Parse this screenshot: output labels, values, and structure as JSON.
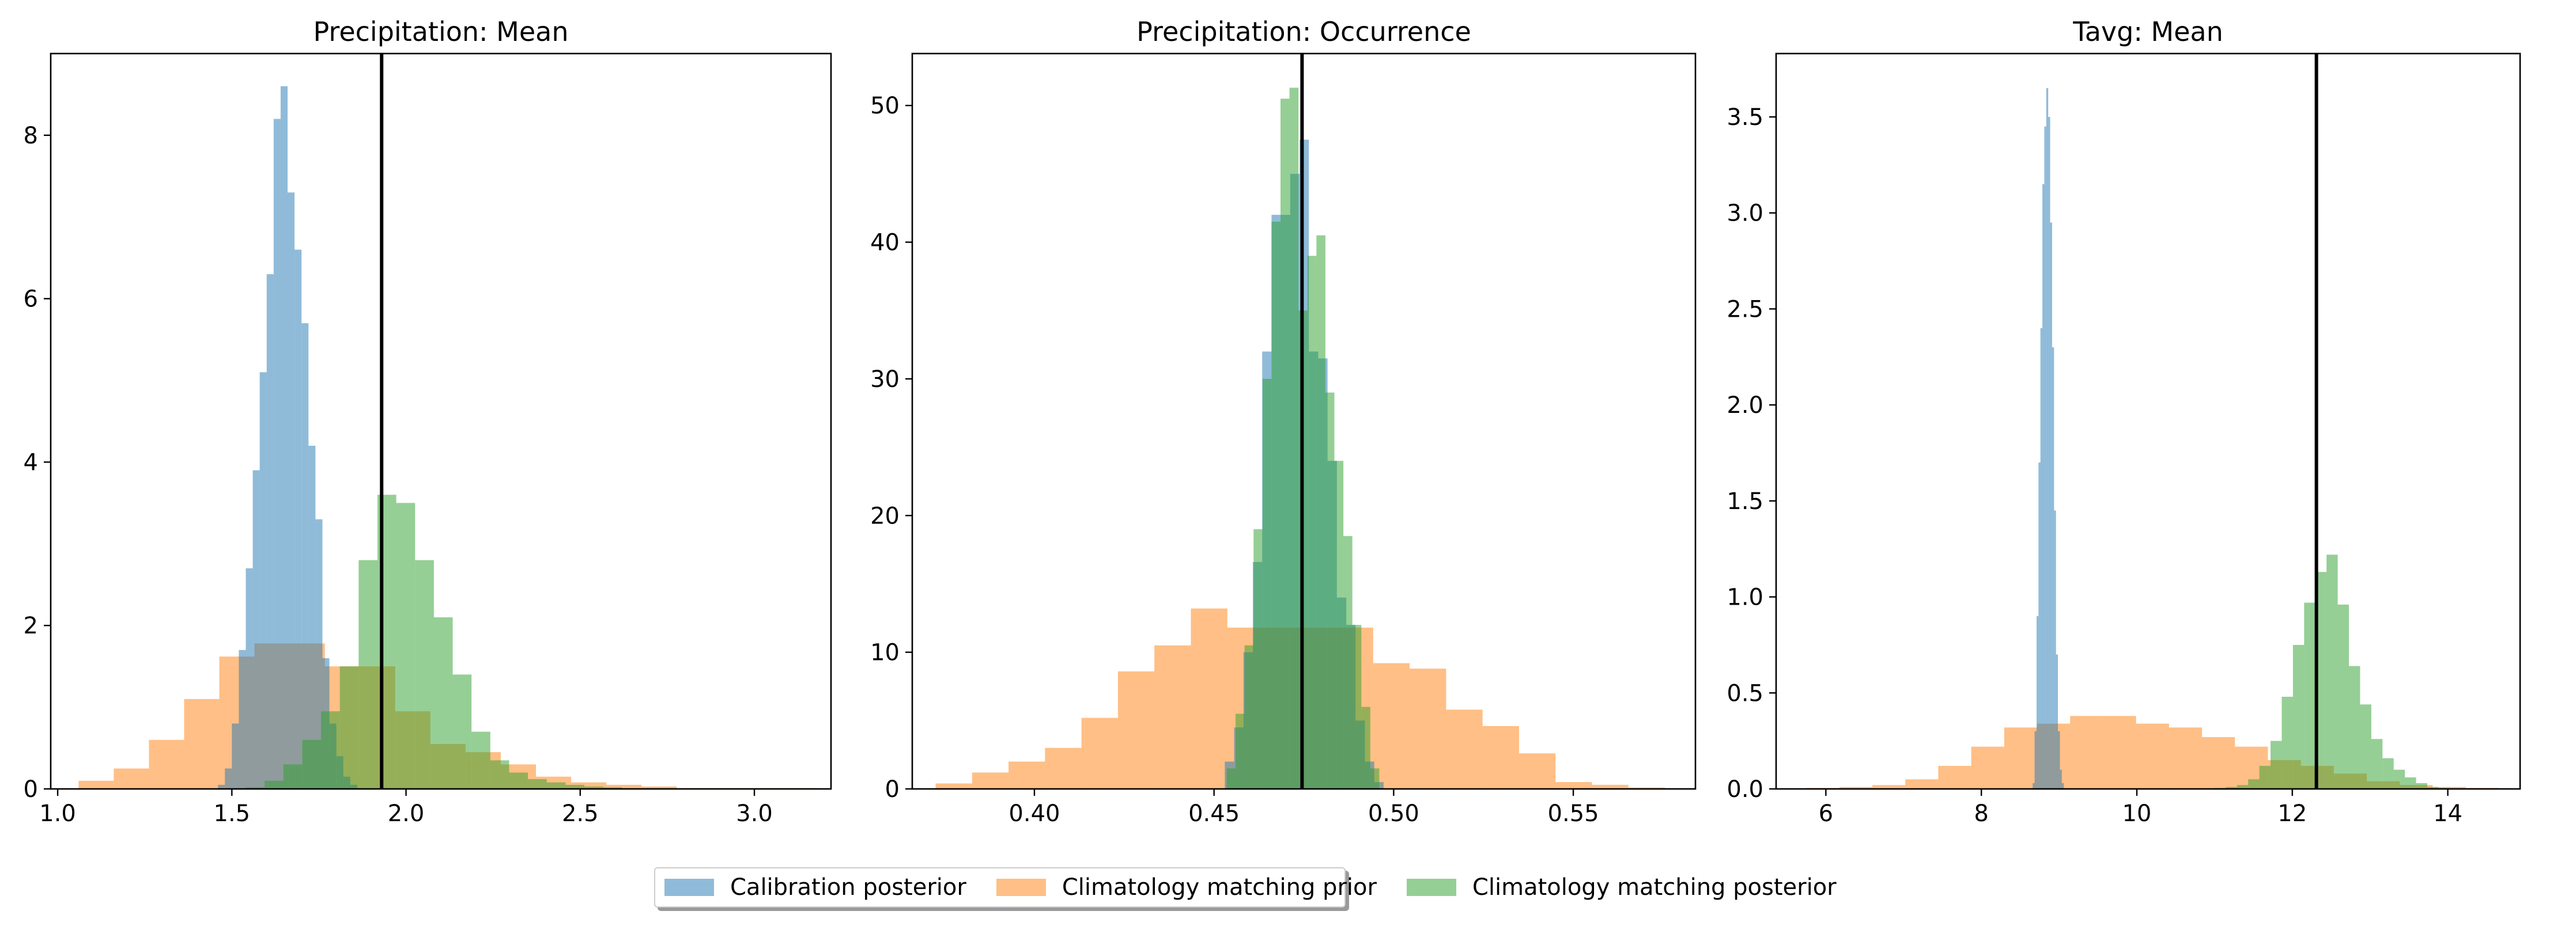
{
  "colors": {
    "calibration_posterior": "#1f77b4",
    "climatology_prior": "#ff7f0e",
    "climatology_posterior": "#2ca02c",
    "reference_line": "#000000"
  },
  "legend": {
    "items": [
      {
        "label": "Calibration posterior",
        "color": "#1f77b4"
      },
      {
        "label": "Climatology matching prior",
        "color": "#ff7f0e"
      },
      {
        "label": "Climatology matching posterior",
        "color": "#2ca02c"
      }
    ]
  },
  "chart_data": [
    {
      "type": "histogram",
      "title": "Precipitation: Mean",
      "xlim": [
        0.98,
        3.22
      ],
      "ylim": [
        0,
        9.0
      ],
      "xticks": [
        1.0,
        1.5,
        2.0,
        2.5,
        3.0
      ],
      "xtick_labels": [
        "1.0",
        "1.5",
        "2.0",
        "2.5",
        "3.0"
      ],
      "yticks": [
        0,
        2,
        4,
        6,
        8
      ],
      "ytick_labels": [
        "0",
        "2",
        "4",
        "6",
        "8"
      ],
      "vline": 1.93,
      "series": [
        {
          "name": "Climatology matching prior",
          "color": "#ff7f0e",
          "bin_start": 1.06,
          "bin_width": 0.101,
          "values": [
            0.1,
            0.25,
            0.6,
            1.1,
            1.62,
            1.78,
            1.78,
            1.5,
            1.5,
            0.95,
            0.55,
            0.45,
            0.3,
            0.15,
            0.08,
            0.05,
            0.03,
            0.01,
            0.01,
            0.01,
            0.01
          ]
        },
        {
          "name": "Calibration posterior",
          "color": "#1f77b4",
          "bin_start": 1.46,
          "bin_width": 0.02,
          "values": [
            0.05,
            0.25,
            0.8,
            1.7,
            2.7,
            3.9,
            5.1,
            6.3,
            8.2,
            8.6,
            7.3,
            6.6,
            5.7,
            4.2,
            3.3,
            1.6,
            0.8,
            0.4,
            0.15,
            0.05
          ]
        },
        {
          "name": "Climatology matching posterior",
          "color": "#2ca02c",
          "bin_start": 1.54,
          "bin_width": 0.054,
          "values": [
            0.02,
            0.1,
            0.3,
            0.6,
            0.95,
            1.5,
            2.8,
            3.6,
            3.5,
            2.8,
            2.1,
            1.4,
            0.7,
            0.35,
            0.2,
            0.12,
            0.08,
            0.05,
            0.03,
            0.02,
            0.01,
            0.01,
            0.01
          ]
        }
      ]
    },
    {
      "type": "histogram",
      "title": "Precipitation: Occurrence",
      "xlim": [
        0.366,
        0.584
      ],
      "ylim": [
        0,
        53.8
      ],
      "xticks": [
        0.4,
        0.45,
        0.5,
        0.55
      ],
      "xtick_labels": [
        "0.40",
        "0.45",
        "0.50",
        "0.55"
      ],
      "yticks": [
        0,
        10,
        20,
        30,
        40,
        50
      ],
      "ytick_labels": [
        "0",
        "10",
        "20",
        "30",
        "40",
        "50"
      ],
      "vline": 0.4745,
      "series": [
        {
          "name": "Climatology matching prior",
          "color": "#ff7f0e",
          "bin_start": 0.3725,
          "bin_width": 0.01015,
          "values": [
            0.4,
            1.2,
            2.0,
            3.0,
            5.2,
            8.6,
            10.5,
            13.2,
            11.8,
            11.8,
            11.8,
            11.8,
            9.2,
            8.8,
            5.8,
            4.6,
            2.6,
            0.5,
            0.3,
            0.1,
            0.05
          ]
        },
        {
          "name": "Calibration posterior",
          "color": "#1f77b4",
          "bin_start": 0.453,
          "bin_width": 0.0026,
          "values": [
            2,
            4.5,
            10,
            16.6,
            32,
            42,
            42,
            45,
            47.5,
            32,
            31.5,
            24,
            14,
            12,
            5,
            2,
            0.5
          ]
        },
        {
          "name": "Climatology matching posterior",
          "color": "#2ca02c",
          "bin_start": 0.4535,
          "bin_width": 0.0025,
          "values": [
            1.5,
            5.5,
            10.5,
            19,
            30,
            41.5,
            50.5,
            51.3,
            35,
            39,
            40.5,
            29,
            24,
            18.5,
            12,
            6,
            1.5
          ]
        }
      ]
    },
    {
      "type": "histogram",
      "title": "Tavg: Mean",
      "xlim": [
        5.36,
        14.93
      ],
      "ylim": [
        0,
        3.83
      ],
      "xticks": [
        6,
        8,
        10,
        12,
        14
      ],
      "xtick_labels": [
        "6",
        "8",
        "10",
        "12",
        "14"
      ],
      "yticks": [
        0.0,
        0.5,
        1.0,
        1.5,
        2.0,
        2.5,
        3.0,
        3.5
      ],
      "ytick_labels": [
        "0.0",
        "0.5",
        "1.0",
        "1.5",
        "2.0",
        "2.5",
        "3.0",
        "3.5"
      ],
      "vline": 12.31,
      "series": [
        {
          "name": "Climatology matching prior",
          "color": "#ff7f0e",
          "bin_start": 5.75,
          "bin_width": 0.424,
          "values": [
            0.005,
            0.01,
            0.02,
            0.05,
            0.12,
            0.22,
            0.32,
            0.34,
            0.38,
            0.38,
            0.34,
            0.32,
            0.27,
            0.22,
            0.15,
            0.12,
            0.08,
            0.04,
            0.02,
            0.01,
            0.005
          ]
        },
        {
          "name": "Calibration posterior",
          "color": "#1f77b4",
          "bin_start": 8.66,
          "bin_width": 0.025,
          "values": [
            0.03,
            0.3,
            0.9,
            1.7,
            2.4,
            3.15,
            3.45,
            3.65,
            3.5,
            2.95,
            2.3,
            1.45,
            0.7,
            0.3,
            0.1,
            0.03
          ]
        },
        {
          "name": "Climatology matching posterior",
          "color": "#2ca02c",
          "bin_start": 11.0,
          "bin_width": 0.144,
          "values": [
            0.005,
            0.01,
            0.02,
            0.05,
            0.12,
            0.25,
            0.48,
            0.75,
            0.97,
            1.13,
            1.22,
            0.96,
            0.64,
            0.44,
            0.26,
            0.16,
            0.1,
            0.06,
            0.03,
            0.01,
            0.005
          ]
        }
      ]
    }
  ]
}
